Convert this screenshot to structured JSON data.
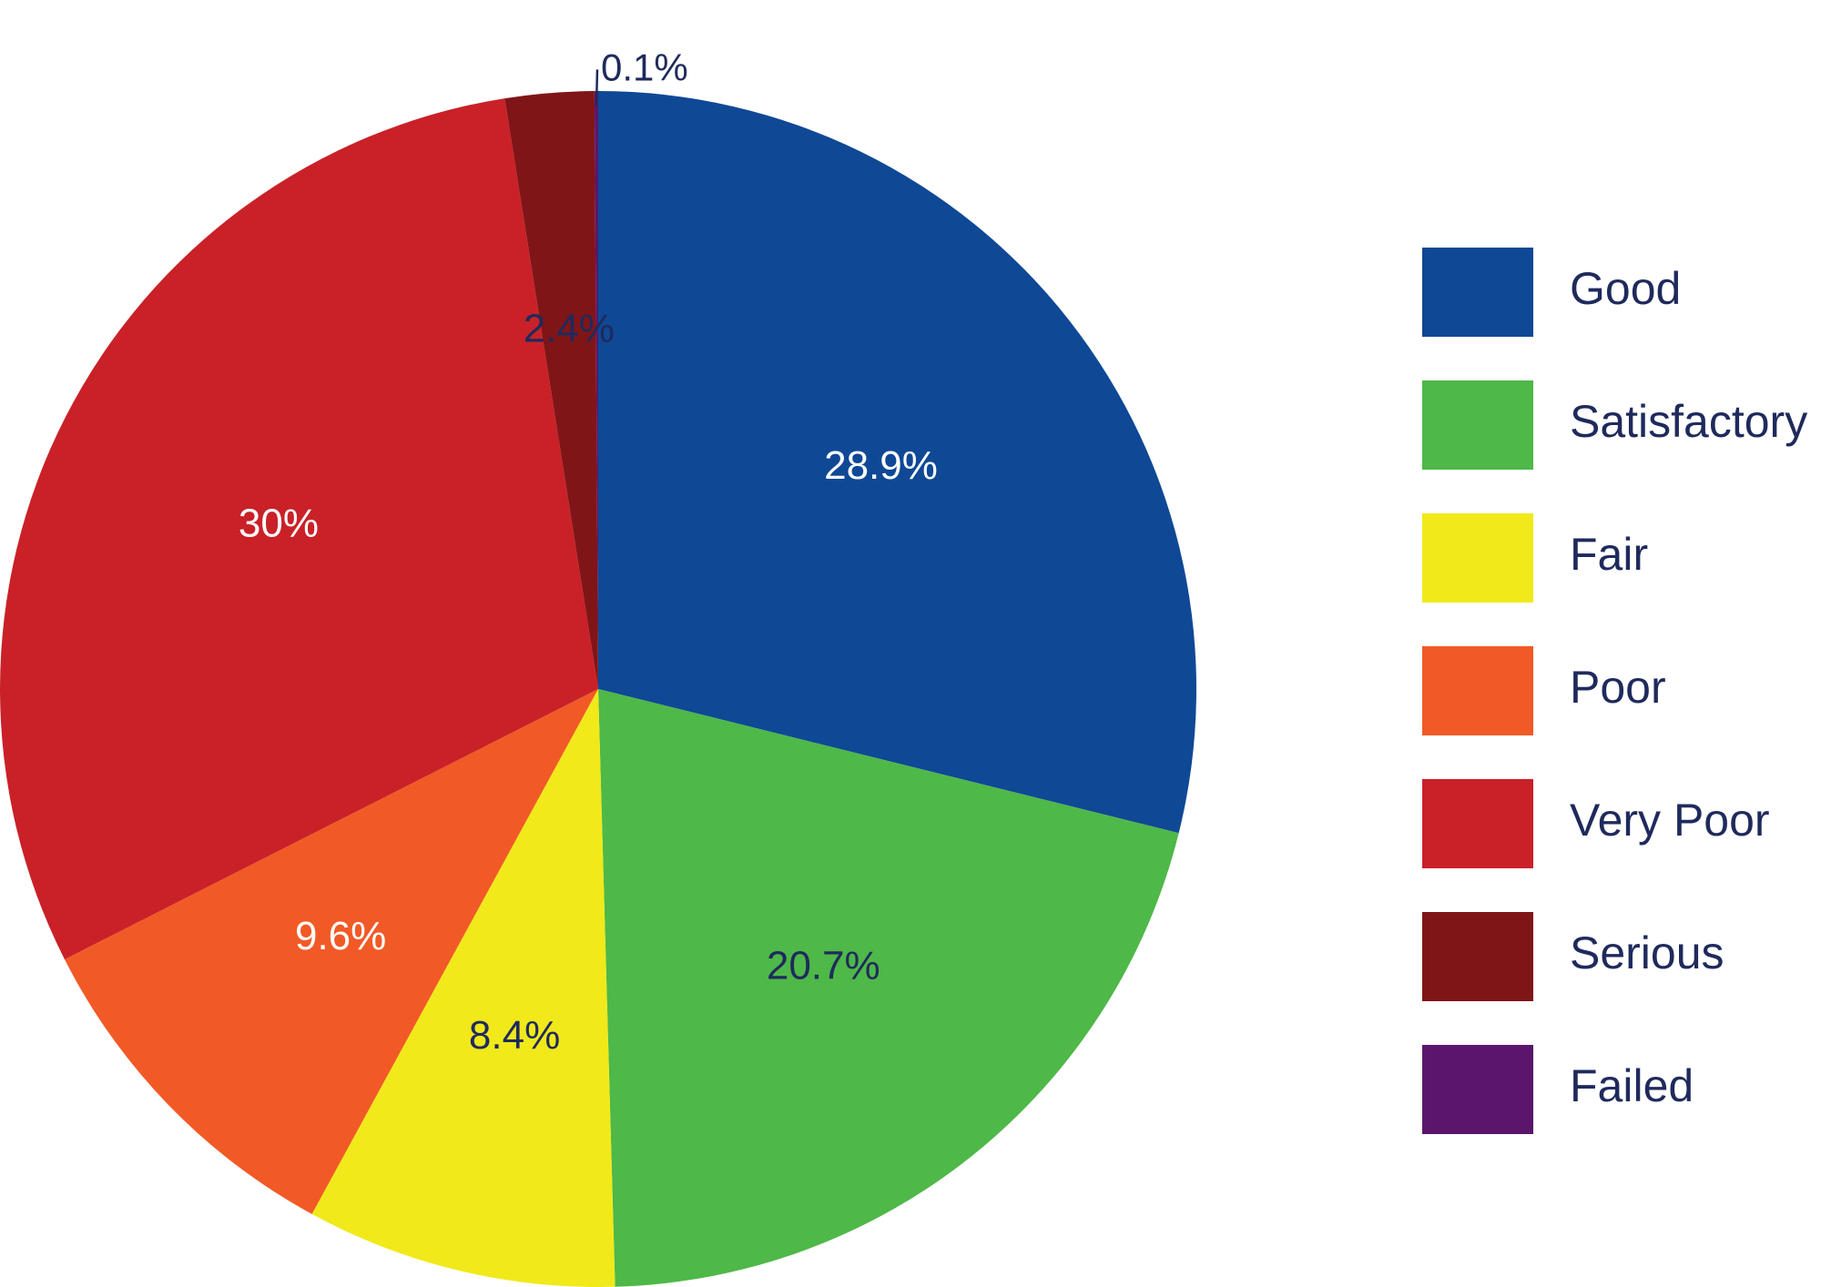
{
  "chart_data": {
    "type": "pie",
    "title": "",
    "start_angle_deg": 0,
    "direction": "clockwise",
    "legend_position": "right",
    "slices": [
      {
        "label": "Good",
        "value": 28.9,
        "display": "28.9%",
        "color": "#0f4895",
        "label_color": "#ffffff"
      },
      {
        "label": "Satisfactory",
        "value": 20.7,
        "display": "20.7%",
        "color": "#4eb848",
        "label_color": "#1f2a5c"
      },
      {
        "label": "Fair",
        "value": 8.4,
        "display": "8.4%",
        "color": "#f1e91a",
        "label_color": "#1f2a5c"
      },
      {
        "label": "Poor",
        "value": 9.6,
        "display": "9.6%",
        "color": "#f15a26",
        "label_color": "#ffffff"
      },
      {
        "label": "Very Poor",
        "value": 30,
        "display": "30%",
        "color": "#c92127",
        "label_color": "#ffffff"
      },
      {
        "label": "Serious",
        "value": 2.4,
        "display": "2.4%",
        "color": "#801517",
        "label_color": "#1f2a5c"
      },
      {
        "label": "Failed",
        "value": 0.1,
        "display": "0.1%",
        "color": "#5b166b",
        "label_color": "#1f2a5c"
      }
    ]
  }
}
